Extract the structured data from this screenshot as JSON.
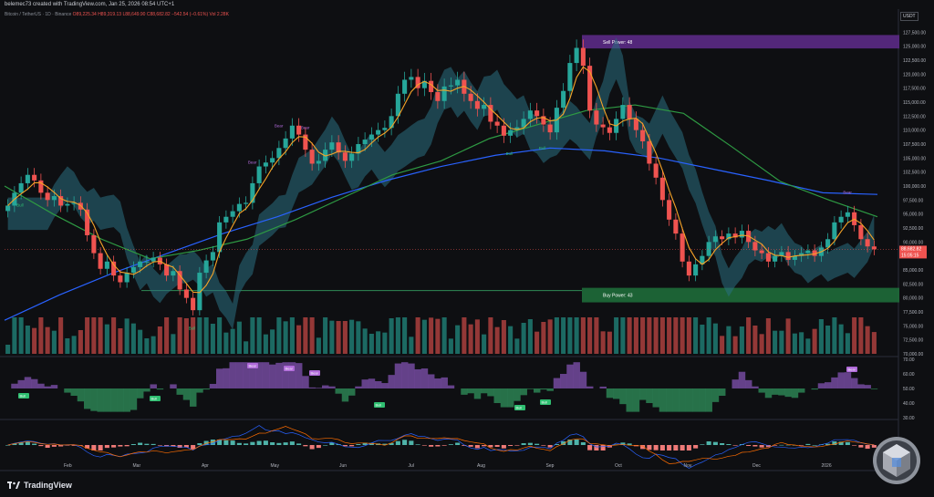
{
  "header": {
    "caption": "belemec73 created with TradingView.com, Jan 25, 2026 08:54 UTC+1"
  },
  "legend": {
    "symbol": "Bitcoin / TetherUS · 1D · Binance",
    "ohlc": "O89,225.34 H89,319.13 L88,649.90 C88,682.82 −542.54 (−0.61%)",
    "vol": "Vol 2.28K"
  },
  "currency": "USDT",
  "footer": {
    "brand": "TradingView"
  },
  "colors": {
    "up": "#26a69a",
    "down": "#ef5350",
    "bull": "#2fbf71",
    "bear": "#b06ad9",
    "cloud": "#2a6f7f",
    "ma_blue": "#2962ff",
    "ma_green": "#2e9a43",
    "orange": "#f7a327"
  },
  "chart_data": {
    "type": "candlestick",
    "y_axis": {
      "ticks": [
        "127,500.00",
        "125,000.00",
        "122,500.00",
        "120,000.00",
        "117,500.00",
        "115,000.00",
        "112,500.00",
        "110,000.00",
        "107,500.00",
        "105,000.00",
        "102,500.00",
        "100,000.00",
        "97,500.00",
        "95,000.00",
        "92,500.00",
        "90,000.00",
        "85,000.00",
        "82,500.00",
        "80,000.00",
        "77,500.00",
        "75,000.00",
        "72,500.00",
        "70,000.00"
      ],
      "ylim": [
        70000,
        130000
      ],
      "last_price": "88,682.82",
      "countdown": "15:05:15"
    },
    "x_axis": {
      "labels": [
        "Feb",
        "Mar",
        "Apr",
        "May",
        "Jun",
        "Jul",
        "Aug",
        "Sep",
        "Oct",
        "Nov",
        "Dec",
        "2026"
      ]
    },
    "price_series": [
      96500,
      98800,
      100500,
      102000,
      101000,
      98800,
      97500,
      98200,
      96500,
      96800,
      97000,
      95800,
      91200,
      88000,
      85200,
      86500,
      84000,
      82800,
      84500,
      85500,
      86500,
      86500,
      87200,
      86000,
      84000,
      84800,
      81500,
      80000,
      77800,
      84500,
      86700,
      88200,
      93500,
      94500,
      95500,
      96800,
      97000,
      100500,
      103500,
      104200,
      105000,
      106800,
      108500,
      110800,
      109200,
      106500,
      104000,
      104500,
      106500,
      107800,
      106000,
      104500,
      105800,
      107500,
      108300,
      109200,
      110000,
      110400,
      112500,
      116500,
      119000,
      119500,
      117500,
      118800,
      116800,
      115200,
      117800,
      118000,
      119000,
      116500,
      115200,
      113800,
      114500,
      111500,
      110800,
      109000,
      110000,
      110500,
      112000,
      113500,
      112500,
      111000,
      109600,
      114000,
      117000,
      122000,
      124700,
      121500,
      113500,
      111000,
      110500,
      109500,
      112000,
      114500,
      112000,
      110000,
      108000,
      104000,
      101500,
      97500,
      94000,
      91500,
      86500,
      84000,
      86000,
      87500,
      90000,
      91000,
      90500,
      91500,
      90800,
      92000,
      90000,
      88500,
      88000,
      86500,
      87500,
      88200,
      86800,
      87500,
      88000,
      88500,
      87500,
      89000,
      90500,
      93500,
      94500,
      95300,
      93000,
      90500,
      89200,
      88682
    ],
    "ma_blue": [
      76000,
      80500,
      84500,
      88000,
      91500,
      94500,
      98000,
      101000,
      103500,
      105500,
      106800,
      106300,
      105000,
      103000,
      101000,
      98800,
      98500
    ],
    "ma_green": [
      100000,
      95000,
      90500,
      87000,
      88500,
      90500,
      94000,
      98000,
      102000,
      104500,
      108500,
      111000,
      113500,
      114500,
      113000,
      107000,
      100800,
      97500,
      94500
    ],
    "zones": [
      {
        "label": "Sell Power: 48",
        "top": 127000,
        "bottom": 124600
      },
      {
        "label": "Buy Power: 43",
        "top": 81800,
        "bottom": 79200
      }
    ],
    "signals_price": [
      {
        "text": "Bull",
        "i": 2
      },
      {
        "text": "Bear",
        "i": 37
      },
      {
        "text": "Bear",
        "i": 41
      },
      {
        "text": "Bear",
        "i": 45
      },
      {
        "text": "Bull",
        "i": 28
      },
      {
        "text": "Bull",
        "i": 76
      },
      {
        "text": "Bull",
        "i": 81
      },
      {
        "text": "Bear",
        "i": 127
      }
    ],
    "oscillator": {
      "ticks": [
        "70.00",
        "60.00",
        "50.00",
        "40.00",
        "30.00"
      ],
      "ylim": [
        30,
        70
      ],
      "labels": [
        {
          "text": "Bull",
          "x": 26,
          "y": 435
        },
        {
          "text": "Bull",
          "x": 170,
          "y": 438
        },
        {
          "text": "Bear",
          "x": 277,
          "y": 402
        },
        {
          "text": "Bear",
          "x": 317,
          "y": 405
        },
        {
          "text": "Bear",
          "x": 345,
          "y": 410
        },
        {
          "text": "Bull",
          "x": 416,
          "y": 445
        },
        {
          "text": "Bull",
          "x": 570,
          "y": 448
        },
        {
          "text": "Bull",
          "x": 598,
          "y": 442
        },
        {
          "text": "Bear",
          "x": 934,
          "y": 406
        }
      ]
    }
  }
}
